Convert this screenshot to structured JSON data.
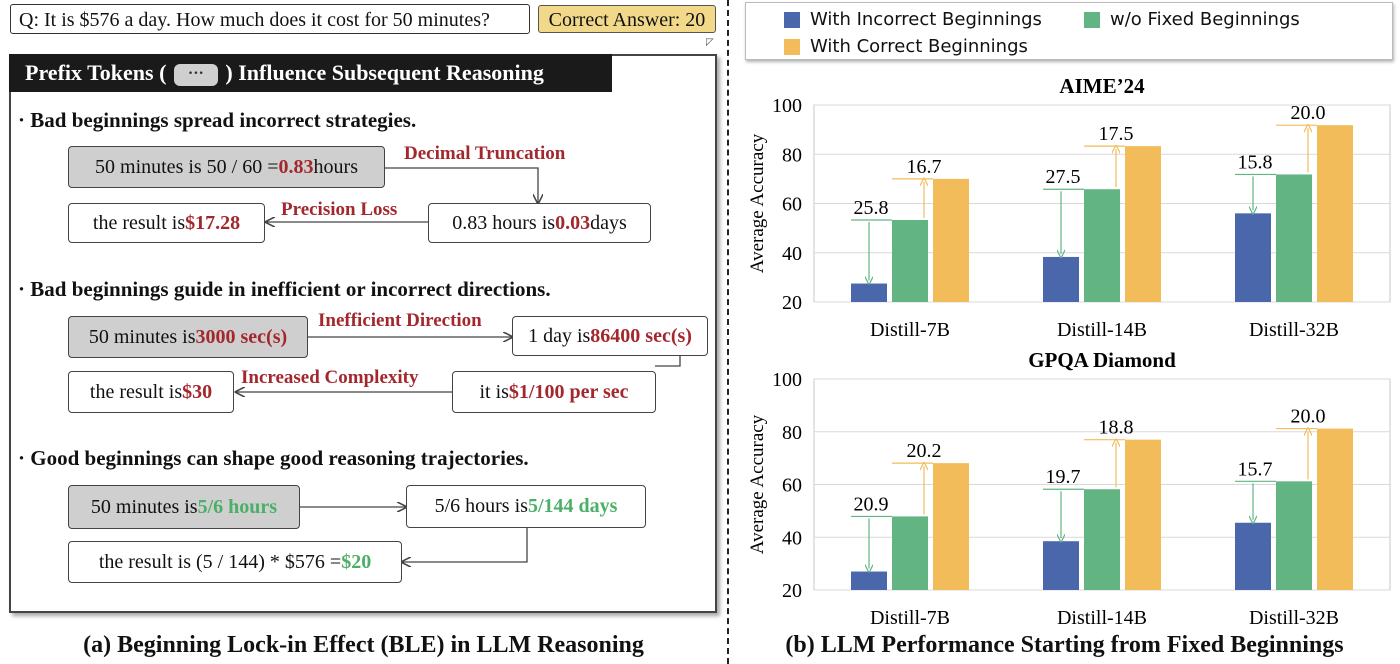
{
  "question": "Q: It is $576 a day. How much does it cost for 50 minutes?",
  "correct_answer": "Correct Answer: 20",
  "panel_title_pre": "Prefix Tokens (",
  "panel_title_chip": "···",
  "panel_title_post": ") Influence Subsequent Reasoning",
  "sections": [
    {
      "heading": "· Bad beginnings spread incorrect strategies.",
      "nodes": [
        {
          "pre": "50 minutes is 50 / 60 = ",
          "hl": "0.83",
          "post": " hours"
        },
        {
          "pre": "0.83 hours is ",
          "hl": "0.03",
          "post": " days"
        },
        {
          "pre": "the result is ",
          "hl": "$17.28",
          "post": ""
        }
      ],
      "labels": [
        "Decimal Truncation",
        "Precision Loss"
      ]
    },
    {
      "heading": "· Bad beginnings guide in inefficient or incorrect directions.",
      "nodes": [
        {
          "pre": "50 minutes is ",
          "hl": "3000 sec(s)",
          "post": ""
        },
        {
          "pre": "1 day is ",
          "hl": "86400 sec(s)",
          "post": ""
        },
        {
          "pre": "it is ",
          "hl": "$1/100 per sec",
          "post": ""
        },
        {
          "pre": "the result is ",
          "hl": "$30",
          "post": ""
        }
      ],
      "labels": [
        "Inefficient Direction",
        "Increased Complexity"
      ]
    },
    {
      "heading": "· Good beginnings can shape good reasoning trajectories.",
      "nodes": [
        {
          "pre": "50 minutes is ",
          "hl": "5/6 hours",
          "post": ""
        },
        {
          "pre": "5/6 hours is ",
          "hl": "5/144 days",
          "post": ""
        },
        {
          "pre": "the result is (5 / 144) * $576 = ",
          "hl": "$20",
          "post": ""
        }
      ]
    }
  ],
  "caption_left": "(a) Beginning Lock-in Effect (BLE) in LLM Reasoning",
  "caption_right": "(b) LLM Performance Starting from Fixed Beginnings",
  "colors": {
    "incorrect": "#4a67ac",
    "without": "#62b483",
    "correct": "#f2bc5a",
    "red_text": "#a3282e",
    "green_text": "#4caf68"
  },
  "legend": [
    "With Incorrect Beginnings",
    "w/o Fixed Beginnings",
    "With Correct Beginnings"
  ],
  "chart_data": [
    {
      "type": "bar",
      "title": "AIME’24",
      "ylabel": "Average Accuracy",
      "categories": [
        "Distill-7B",
        "Distill-14B",
        "Distill-32B"
      ],
      "ylim": [
        20,
        100
      ],
      "yticks": [
        20,
        40,
        60,
        80,
        100
      ],
      "series": [
        {
          "name": "With Incorrect Beginnings",
          "values": [
            27.5,
            38.3,
            56.0
          ]
        },
        {
          "name": "w/o Fixed Beginnings",
          "values": [
            53.3,
            65.8,
            71.8
          ]
        },
        {
          "name": "With Correct Beginnings",
          "values": [
            70.0,
            83.3,
            91.8
          ]
        }
      ],
      "annotations_down": [
        "25.8",
        "27.5",
        "15.8"
      ],
      "annotations_up": [
        "16.7",
        "17.5",
        "20.0"
      ]
    },
    {
      "type": "bar",
      "title": "GPQA Diamond",
      "ylabel": "Average Accuracy",
      "categories": [
        "Distill-7B",
        "Distill-14B",
        "Distill-32B"
      ],
      "ylim": [
        20,
        100
      ],
      "yticks": [
        20,
        40,
        60,
        80,
        100
      ],
      "series": [
        {
          "name": "With Incorrect Beginnings",
          "values": [
            27.0,
            38.5,
            45.5
          ]
        },
        {
          "name": "w/o Fixed Beginnings",
          "values": [
            47.9,
            58.2,
            61.2
          ]
        },
        {
          "name": "With Correct Beginnings",
          "values": [
            68.1,
            77.0,
            81.2
          ]
        }
      ],
      "annotations_down": [
        "20.9",
        "19.7",
        "15.7"
      ],
      "annotations_up": [
        "20.2",
        "18.8",
        "20.0"
      ]
    }
  ]
}
